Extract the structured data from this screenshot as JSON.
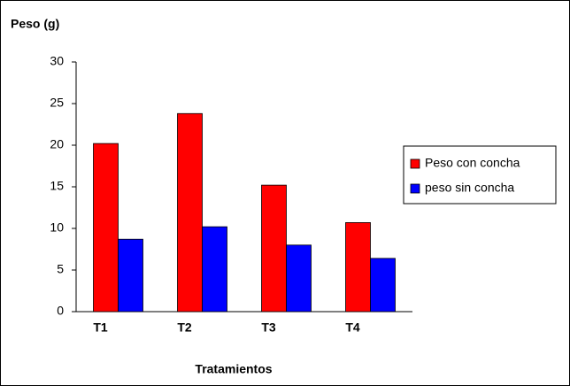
{
  "chart_data": {
    "type": "bar",
    "title": "Peso (g)",
    "x_label": "Tratamientos",
    "categories": [
      "T1",
      "T2",
      "T3",
      "T4"
    ],
    "series": [
      {
        "name": "Peso con concha",
        "color": "#ff0000",
        "values": [
          20.2,
          23.8,
          15.2,
          10.7
        ]
      },
      {
        "name": "peso sin concha",
        "color": "#0000ff",
        "values": [
          8.7,
          10.2,
          8.0,
          6.4
        ]
      }
    ],
    "ylim": [
      0,
      30
    ],
    "yticks": [
      0,
      5,
      10,
      15,
      20,
      25,
      30
    ],
    "grid": false,
    "legend": "right"
  }
}
